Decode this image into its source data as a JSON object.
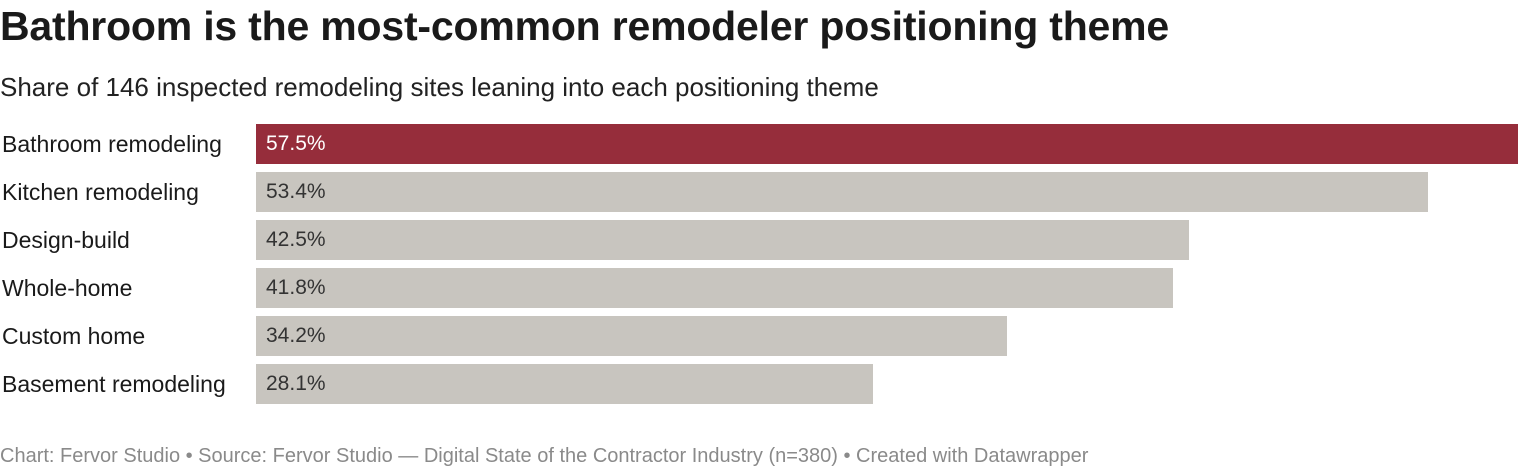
{
  "title": "Bathroom is the most-common remodeler positioning theme",
  "subtitle": "Share of 146 inspected remodeling sites leaning into each positioning theme",
  "footer": "Chart: Fervor Studio • Source: Fervor Studio — Digital State of the Contractor Industry (n=380) • Created with Datawrapper",
  "colors": {
    "highlight": "#962d3b",
    "default": "#c8c5bf",
    "highlight_text": "#ffffff",
    "default_text": "#333333"
  },
  "chart_data": {
    "type": "bar",
    "orientation": "horizontal",
    "categories": [
      "Bathroom remodeling",
      "Kitchen remodeling",
      "Design-build",
      "Whole-home",
      "Custom home",
      "Basement remodeling"
    ],
    "values": [
      57.5,
      53.4,
      42.5,
      41.8,
      34.2,
      28.1
    ],
    "value_labels": [
      "57.5%",
      "53.4%",
      "42.5%",
      "41.8%",
      "34.2%",
      "28.1%"
    ],
    "highlighted_index": 0,
    "xlim": [
      0,
      57.5
    ]
  }
}
